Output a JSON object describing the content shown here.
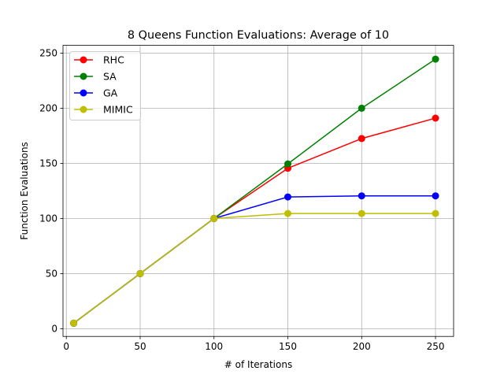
{
  "chart_data": {
    "type": "line",
    "title": "8 Queens Function Evaluations: Average of 10",
    "xlabel": "# of Iterations",
    "ylabel": "Function Evaluations",
    "x": [
      5,
      50,
      100,
      150,
      200,
      250
    ],
    "xlim": [
      -2.25,
      262.25
    ],
    "ylim": [
      -7,
      257
    ],
    "xticks": [
      0,
      50,
      100,
      150,
      200,
      250
    ],
    "yticks": [
      0,
      50,
      100,
      150,
      200,
      250
    ],
    "grid": true,
    "legend_position": "upper left",
    "series": [
      {
        "name": "RHC",
        "color": "#ff0000",
        "values": [
          5,
          50,
          100,
          145.5,
          172.5,
          191
        ]
      },
      {
        "name": "SA",
        "color": "#008000",
        "values": [
          5,
          50,
          100,
          149.5,
          200,
          244.5
        ]
      },
      {
        "name": "GA",
        "color": "#0000ff",
        "values": [
          5,
          50,
          100,
          119.5,
          120.5,
          120.5
        ]
      },
      {
        "name": "MIMIC",
        "color": "#bfbf00",
        "values": [
          5,
          50,
          100,
          104.5,
          104.5,
          104.5
        ]
      }
    ]
  }
}
